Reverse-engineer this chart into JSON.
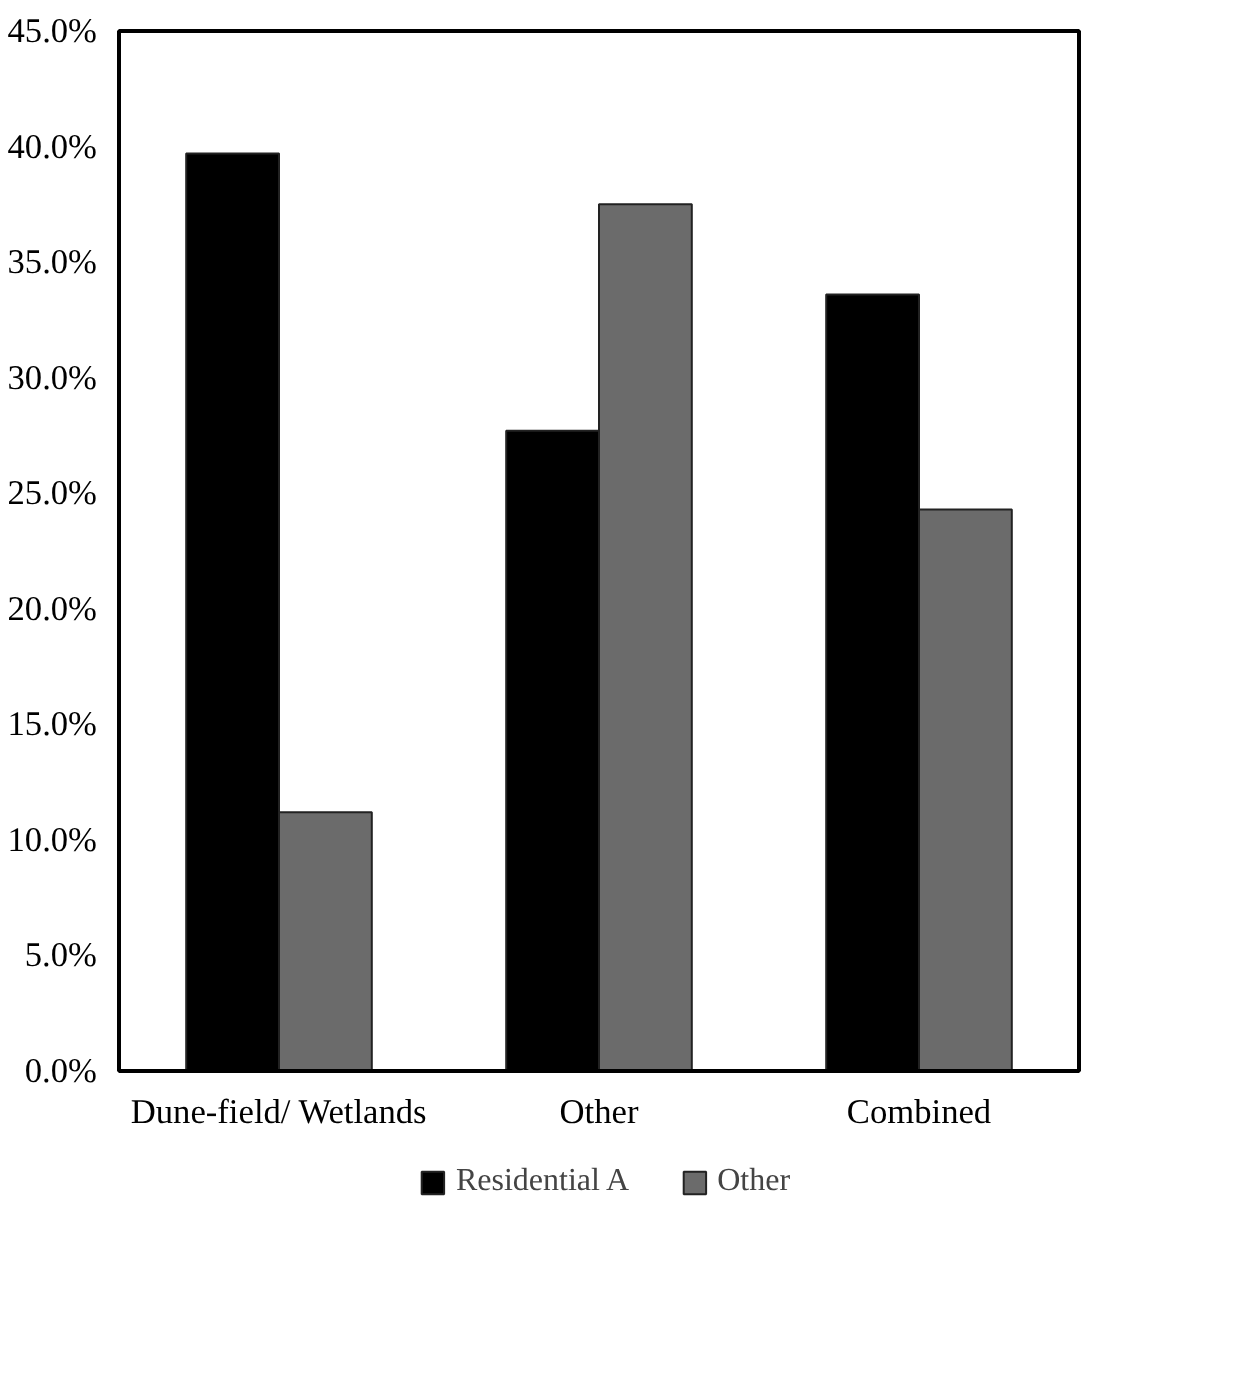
{
  "chart_data": {
    "type": "bar",
    "categories": [
      "Dune-field/ Wetlands",
      "Other",
      "Combined"
    ],
    "series": [
      {
        "name": "Residential A",
        "color": "#000000",
        "values": [
          39.7,
          27.7,
          33.6
        ]
      },
      {
        "name": "Other",
        "color": "#6b6b6b",
        "values": [
          11.2,
          37.5,
          24.3
        ]
      }
    ],
    "ylim": [
      0,
      45
    ],
    "yticks": [
      {
        "value": 0,
        "label": "0.0%"
      },
      {
        "value": 5,
        "label": "5.0%"
      },
      {
        "value": 10,
        "label": "10.0%"
      },
      {
        "value": 15,
        "label": "15.0%"
      },
      {
        "value": 20,
        "label": "20.0%"
      },
      {
        "value": 25,
        "label": "25.0%"
      },
      {
        "value": 30,
        "label": "30.0%"
      },
      {
        "value": 35,
        "label": "35.0%"
      },
      {
        "value": 40,
        "label": "40.0%"
      },
      {
        "value": 45,
        "label": "45.0%"
      }
    ],
    "grid": false,
    "legend": "bottom"
  }
}
